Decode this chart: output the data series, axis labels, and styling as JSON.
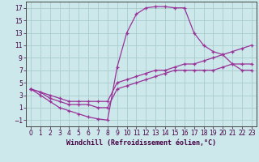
{
  "bg_color": "#cce8ea",
  "grid_color": "#aacccc",
  "line_color": "#993399",
  "xlabel": "Windchill (Refroidissement éolien,°C)",
  "xlim": [
    -0.5,
    23.5
  ],
  "ylim": [
    -2,
    18
  ],
  "xticks": [
    0,
    1,
    2,
    3,
    4,
    5,
    6,
    7,
    8,
    9,
    10,
    11,
    12,
    13,
    14,
    15,
    16,
    17,
    18,
    19,
    20,
    21,
    22,
    23
  ],
  "yticks": [
    -1,
    1,
    3,
    5,
    7,
    9,
    11,
    13,
    15,
    17
  ],
  "curve1_x": [
    0,
    1,
    2,
    3,
    4,
    5,
    6,
    7,
    8,
    9,
    10,
    11,
    12,
    13,
    14,
    15,
    16,
    17,
    18,
    19,
    20,
    21,
    22,
    23
  ],
  "curve1_y": [
    4,
    3,
    2,
    1,
    0.5,
    0,
    -0.5,
    -0.8,
    -1,
    7.5,
    13,
    16,
    17,
    17.2,
    17.2,
    17,
    17,
    13,
    11,
    10,
    9.5,
    8,
    7,
    7
  ],
  "curve2_x": [
    0,
    1,
    2,
    3,
    4,
    5,
    6,
    7,
    8,
    9,
    10,
    11,
    12,
    13,
    14,
    15,
    16,
    17,
    18,
    19,
    20,
    21,
    22,
    23
  ],
  "curve2_y": [
    4,
    3.5,
    3,
    2.5,
    2,
    2,
    2,
    2,
    2,
    5,
    5.5,
    6,
    6.5,
    7,
    7,
    7.5,
    8,
    8,
    8.5,
    9,
    9.5,
    10,
    10.5,
    11
  ],
  "curve3_x": [
    0,
    1,
    2,
    3,
    4,
    5,
    6,
    7,
    8,
    9,
    10,
    11,
    12,
    13,
    14,
    15,
    16,
    17,
    18,
    19,
    20,
    21,
    22,
    23
  ],
  "curve3_y": [
    4,
    3.5,
    2.5,
    2,
    1.5,
    1.5,
    1.5,
    1,
    1,
    4,
    4.5,
    5,
    5.5,
    6,
    6.5,
    7,
    7,
    7,
    7,
    7,
    7.5,
    8,
    8,
    8
  ],
  "tick_fontsize": 5.5,
  "label_fontsize": 6.0,
  "axis_color": "#440044",
  "spine_color": "#444444"
}
